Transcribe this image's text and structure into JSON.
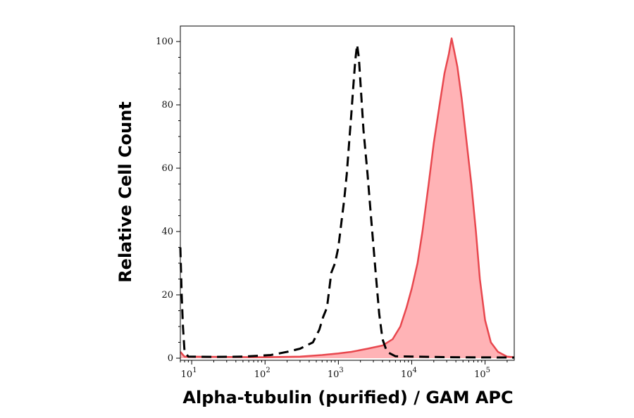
{
  "chart_data": {
    "type": "area",
    "title": "",
    "xlabel": "Alpha-tubulin (purified) / GAM APC",
    "ylabel": "Relative Cell Count",
    "x_scale": "log",
    "xlim": [
      7,
      250000
    ],
    "ylim": [
      0,
      105
    ],
    "x_ticks": [
      {
        "value": 10,
        "base": "10",
        "exp": "1"
      },
      {
        "value": 100,
        "base": "10",
        "exp": "2"
      },
      {
        "value": 1000,
        "base": "10",
        "exp": "3"
      },
      {
        "value": 10000,
        "base": "10",
        "exp": "4"
      },
      {
        "value": 100000,
        "base": "10",
        "exp": "5"
      }
    ],
    "y_ticks": [
      "0",
      "20",
      "40",
      "60",
      "80",
      "100"
    ],
    "grid": false,
    "legend": "none",
    "series": [
      {
        "style": "dashed",
        "color": "#000000",
        "filled": false,
        "points": [
          [
            7,
            35
          ],
          [
            7.3,
            20
          ],
          [
            7.6,
            10
          ],
          [
            8,
            2
          ],
          [
            9,
            0.5
          ],
          [
            20,
            0.4
          ],
          [
            50,
            0.5
          ],
          [
            120,
            1
          ],
          [
            200,
            2
          ],
          [
            300,
            3
          ],
          [
            450,
            5
          ],
          [
            550,
            9
          ],
          [
            620,
            13
          ],
          [
            700,
            16
          ],
          [
            800,
            27
          ],
          [
            900,
            30
          ],
          [
            1000,
            35
          ],
          [
            1100,
            43
          ],
          [
            1200,
            50
          ],
          [
            1300,
            58
          ],
          [
            1400,
            68
          ],
          [
            1500,
            77
          ],
          [
            1600,
            86
          ],
          [
            1700,
            94
          ],
          [
            1800,
            99
          ],
          [
            1900,
            95
          ],
          [
            2000,
            87
          ],
          [
            2200,
            72
          ],
          [
            2500,
            58
          ],
          [
            2800,
            44
          ],
          [
            3200,
            28
          ],
          [
            3600,
            14
          ],
          [
            4000,
            6
          ],
          [
            4600,
            2
          ],
          [
            6000,
            0.6
          ],
          [
            30000,
            0.3
          ],
          [
            250000,
            0.2
          ]
        ]
      },
      {
        "style": "solid",
        "color": "#e8474e",
        "fill": "#ffb3b6",
        "filled": true,
        "points": [
          [
            7,
            2
          ],
          [
            8,
            0.5
          ],
          [
            100,
            0.3
          ],
          [
            300,
            0.5
          ],
          [
            600,
            1
          ],
          [
            1000,
            1.5
          ],
          [
            1500,
            2
          ],
          [
            2500,
            3
          ],
          [
            4000,
            4
          ],
          [
            5500,
            6
          ],
          [
            7000,
            10
          ],
          [
            8500,
            16
          ],
          [
            10000,
            22
          ],
          [
            12000,
            30
          ],
          [
            14000,
            40
          ],
          [
            17000,
            55
          ],
          [
            20000,
            68
          ],
          [
            24000,
            80
          ],
          [
            28000,
            90
          ],
          [
            32000,
            96
          ],
          [
            35000,
            101
          ],
          [
            38000,
            97
          ],
          [
            42000,
            92
          ],
          [
            48000,
            82
          ],
          [
            55000,
            70
          ],
          [
            65000,
            55
          ],
          [
            75000,
            40
          ],
          [
            85000,
            25
          ],
          [
            100000,
            12
          ],
          [
            120000,
            5
          ],
          [
            150000,
            2
          ],
          [
            200000,
            0.5
          ],
          [
            250000,
            0.3
          ]
        ]
      }
    ]
  }
}
